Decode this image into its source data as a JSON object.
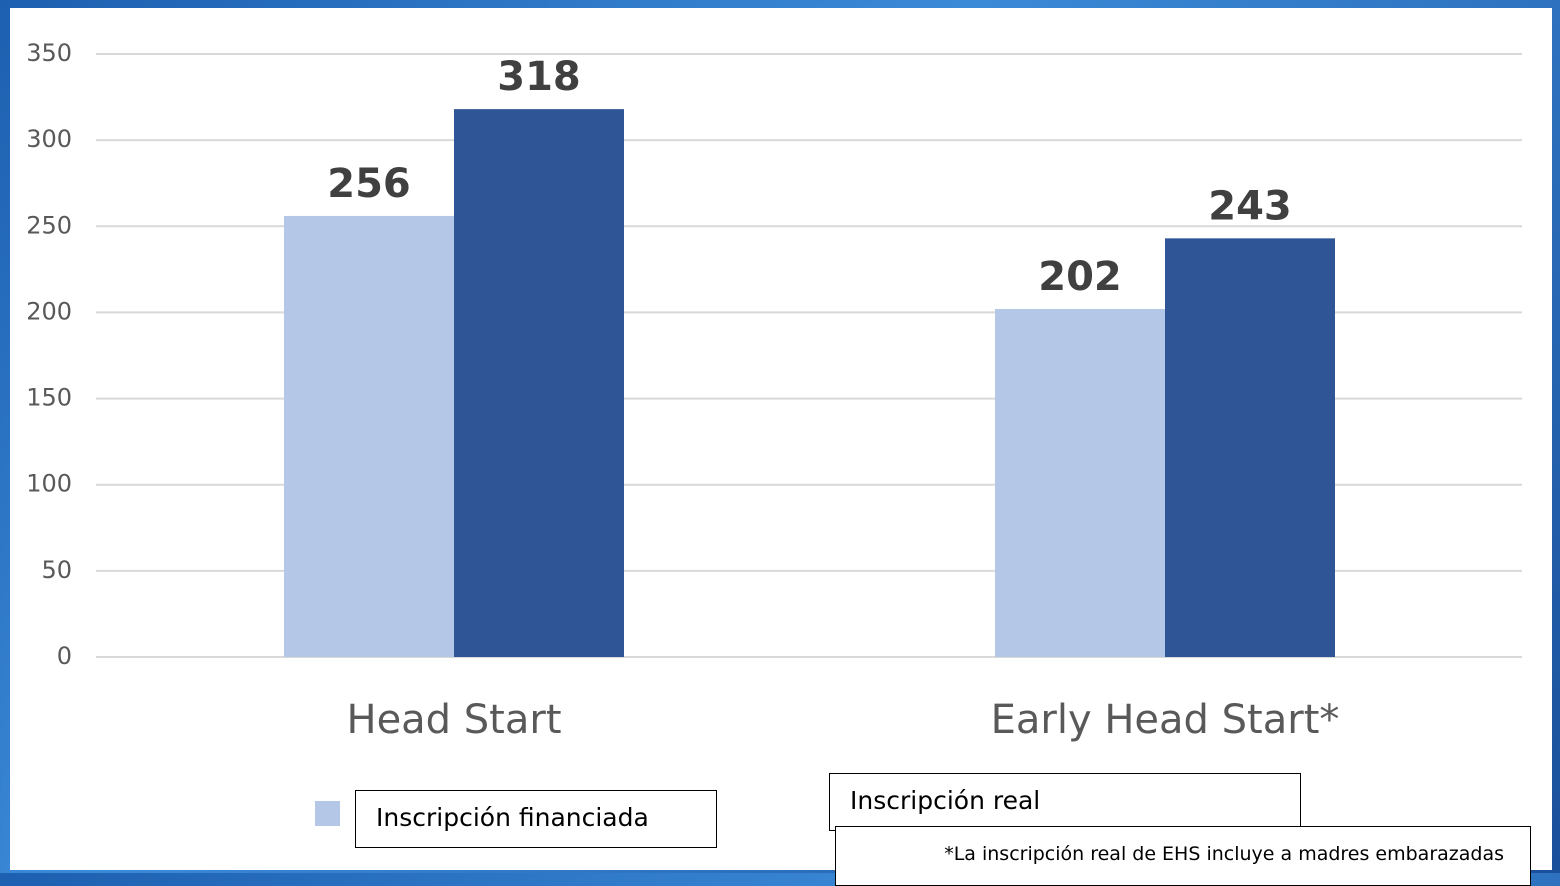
{
  "chart_data": {
    "type": "bar",
    "categories": [
      "Head Start",
      "Early Head Start*"
    ],
    "series": [
      {
        "name": "Inscripción financiada",
        "color": "#b4c7e7",
        "values": [
          256,
          202
        ]
      },
      {
        "name": "Inscripción real",
        "color": "#2f5597",
        "values": [
          318,
          243
        ]
      }
    ],
    "ylim": [
      0,
      350
    ],
    "yticks": [
      0,
      50,
      100,
      150,
      200,
      250,
      300,
      350
    ],
    "grid": true,
    "footnote": "*La inscripción real de EHS incluye a madres embarazadas"
  }
}
